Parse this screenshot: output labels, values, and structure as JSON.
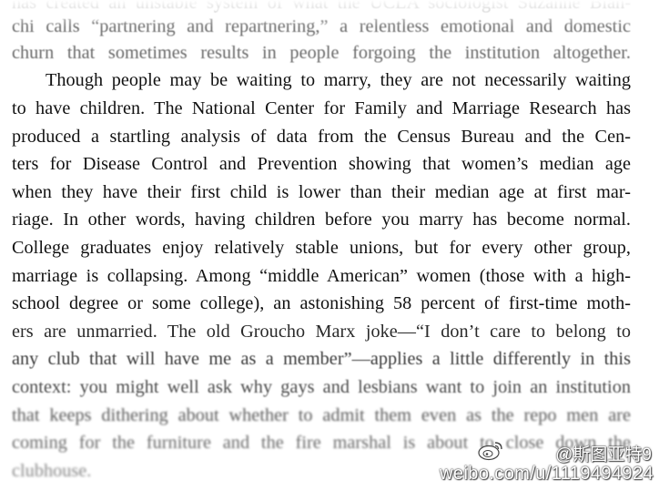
{
  "document": {
    "lines": [
      "has created an unstable system of what the UCLA sociologist Suzanne Bian-",
      "chi calls “partnering and repartnering,” a relentless emotional and domestic",
      "churn that sometimes results in people forgoing the institution altogether.",
      "Though people may be waiting to marry, they are not necessarily waiting",
      "to have children. The National Center for Family and Marriage Research has",
      "produced a startling analysis of data from the Census Bureau and the Cen-",
      "ters for Disease Control and Prevention showing that women’s median age",
      "when they have their first child is lower than their median age at first mar-",
      "riage. In other words, having children before you marry has become normal.",
      "College graduates enjoy relatively stable unions, but for every other group,",
      "marriage is collapsing. Among “middle American” women (those with a high-",
      "school degree or some college), an astonishing 58 percent of first-time moth-",
      "ers are unmarried. The old Groucho Marx joke—“I don’t care to belong to",
      "any club that will have me as a member”—applies a little differently in this",
      "context: you might well ask why gays and lesbians want to join an institution",
      "that keeps dithering about whether to admit them even as the repo men are",
      "coming for the furniture and the fire marshal is about to close down the",
      "clubhouse."
    ]
  },
  "watermark": {
    "handle": "@斯图亚特9",
    "url": "weibo.com/u/1119494924",
    "logo_icon": "weibo-logo-icon"
  }
}
